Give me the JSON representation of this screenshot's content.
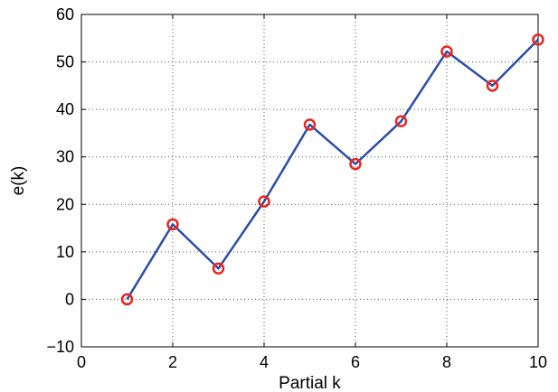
{
  "chart_data": {
    "type": "line",
    "xlabel": "Partial  k",
    "ylabel": "e(k)",
    "xlim": [
      0,
      10
    ],
    "ylim": [
      -10,
      60
    ],
    "x_ticks": [
      0,
      2,
      4,
      6,
      8,
      10
    ],
    "y_ticks": [
      -10,
      0,
      10,
      20,
      30,
      40,
      50,
      60
    ],
    "x_tick_labels": [
      "0",
      "2",
      "4",
      "6",
      "8",
      "10"
    ],
    "y_tick_labels": [
      "−10",
      "0",
      "10",
      "20",
      "30",
      "40",
      "50",
      "60"
    ],
    "grid": true,
    "series": [
      {
        "x": [
          1,
          2,
          3,
          4,
          5,
          6,
          7,
          8,
          9,
          10
        ],
        "values": [
          0,
          15.8,
          6.5,
          20.6,
          36.8,
          28.5,
          37.5,
          52.2,
          45.0,
          54.7
        ],
        "line_color": "#2b4da8",
        "marker": "circle",
        "marker_color": "#e8261f"
      }
    ]
  }
}
